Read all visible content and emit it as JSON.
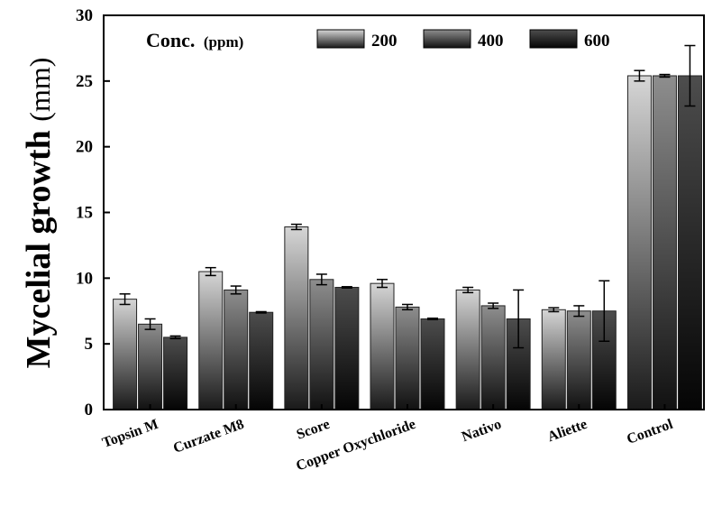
{
  "chart_data": {
    "type": "bar",
    "ylabel_main": "Mycelial growth",
    "ylabel_unit": "(mm)",
    "ylim": [
      0,
      30
    ],
    "yticks": [
      "0",
      "5",
      "10",
      "15",
      "20",
      "25",
      "30"
    ],
    "legend": {
      "title": "Conc.",
      "unit": "(ppm)",
      "placement": "top"
    },
    "categories": [
      "Topsin M",
      "Curzate M8",
      "Score",
      "Copper Oxychloride",
      "Nativo",
      "Aliette",
      "Control"
    ],
    "series": [
      {
        "name": "200",
        "values": [
          8.4,
          10.5,
          13.9,
          9.6,
          9.1,
          7.6,
          25.4
        ],
        "errors": [
          0.4,
          0.3,
          0.2,
          0.3,
          0.2,
          0.15,
          0.4
        ],
        "color_top": "#d6d6d6",
        "color_bottom": "#1a1a1a"
      },
      {
        "name": "400",
        "values": [
          6.5,
          9.1,
          9.9,
          7.8,
          7.9,
          7.5,
          25.4
        ],
        "errors": [
          0.4,
          0.3,
          0.4,
          0.2,
          0.2,
          0.4,
          0.1
        ],
        "color_top": "#8e8e8e",
        "color_bottom": "#111111"
      },
      {
        "name": "600",
        "values": [
          5.5,
          7.4,
          9.3,
          6.9,
          6.9,
          7.5,
          25.4
        ],
        "errors": [
          0.1,
          0.05,
          0.05,
          0.05,
          2.2,
          2.3,
          2.3
        ],
        "color_top": "#4d4d4d",
        "color_bottom": "#050505"
      }
    ],
    "grid": false
  }
}
